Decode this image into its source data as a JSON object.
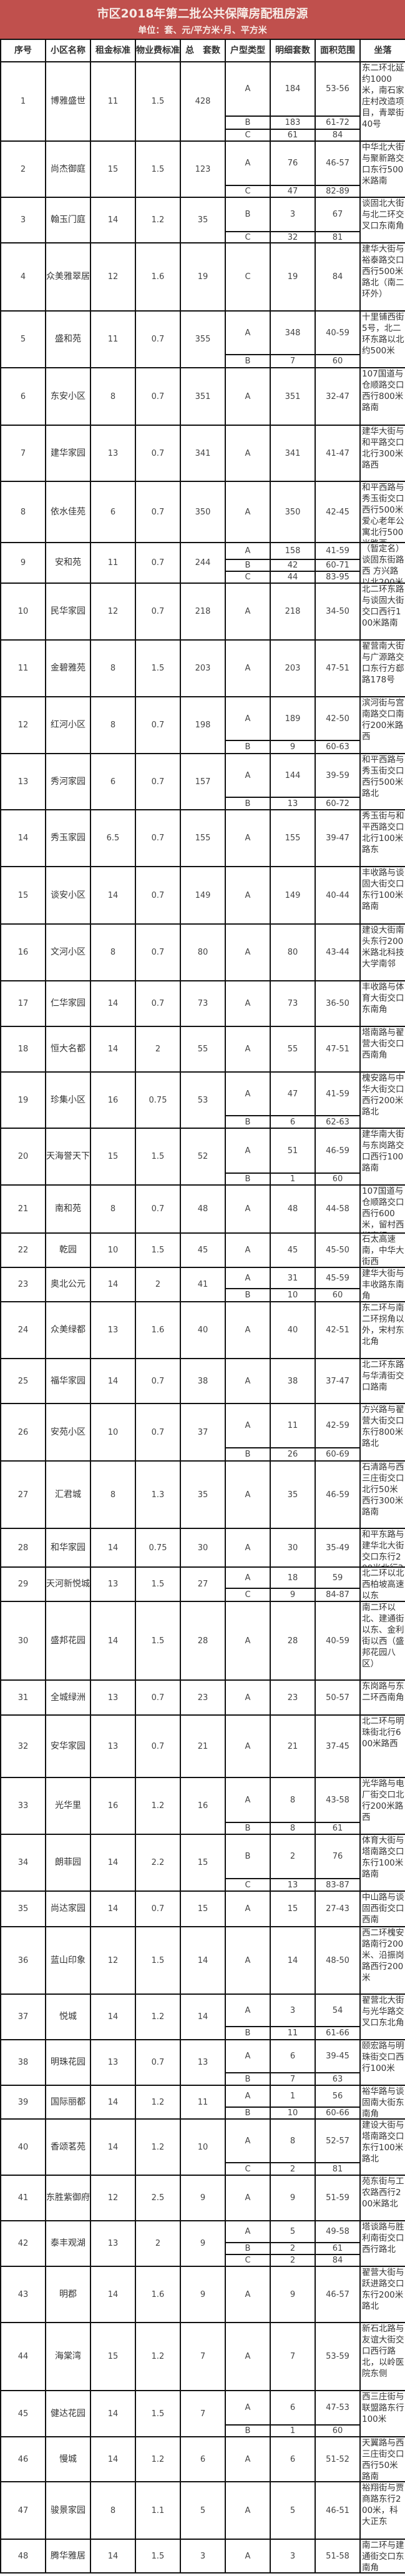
{
  "header": {
    "title": "市区2018年第二批公共保障房配租房源",
    "subtitle": "单位：套、元/平方米·月、平方米",
    "title_bg_color": "#c0504d"
  },
  "columns": [
    "序号",
    "小区名称",
    "租金标准",
    "物业费标准",
    "总　套数",
    "户型类型",
    "明细套数",
    "面积范围",
    "坐落"
  ],
  "rows": [
    {
      "no": "1",
      "name": "博雅盛世",
      "rent": "11",
      "fee": "1.5",
      "total": "428",
      "units": [
        {
          "type": "A",
          "count": "184",
          "area": "53-56"
        },
        {
          "type": "B",
          "count": "183",
          "area": "61-72"
        },
        {
          "type": "C",
          "count": "61",
          "area": "84"
        }
      ],
      "location": "东二环北延约1000米，南石家庄村改造项目，青翠街40号"
    },
    {
      "no": "2",
      "name": "尚杰御庭",
      "rent": "15",
      "fee": "1.5",
      "total": "123",
      "units": [
        {
          "type": "A",
          "count": "76",
          "area": "46-57"
        },
        {
          "type": "C",
          "count": "47",
          "area": "82-89"
        }
      ],
      "location": "中华北大街与聚新路交口东行500米路南"
    },
    {
      "no": "3",
      "name": "翰玉门庭",
      "rent": "14",
      "fee": "1.2",
      "total": "35",
      "units": [
        {
          "type": "B",
          "count": "3",
          "area": "67"
        },
        {
          "type": "C",
          "count": "32",
          "area": "81"
        }
      ],
      "location": "谈固北大街与北二环交叉口东南角"
    },
    {
      "no": "4",
      "name": "众美雅翠居",
      "rent": "12",
      "fee": "1.6",
      "total": "19",
      "units": [
        {
          "type": "C",
          "count": "19",
          "area": "84"
        }
      ],
      "location": "建华大街与裕泰路交口西行500米路北（南二环外）"
    },
    {
      "no": "5",
      "name": "盛和苑",
      "rent": "11",
      "fee": "0.7",
      "total": "355",
      "units": [
        {
          "type": "A",
          "count": "348",
          "area": "40-59"
        },
        {
          "type": "B",
          "count": "7",
          "area": "60"
        }
      ],
      "location": "十里铺西街5号，北二环东路以北约500米"
    },
    {
      "no": "6",
      "name": "东安小区",
      "rent": "8",
      "fee": "0.7",
      "total": "351",
      "units": [
        {
          "type": "A",
          "count": "351",
          "area": "32-47"
        }
      ],
      "location": "107国道与仓顺路交口西行800米路南"
    },
    {
      "no": "7",
      "name": "建华家园",
      "rent": "13",
      "fee": "0.7",
      "total": "341",
      "units": [
        {
          "type": "A",
          "count": "341",
          "area": "41-47"
        }
      ],
      "location": "建华大街与和平路交口北行300米路西"
    },
    {
      "no": "8",
      "name": "依水佳苑",
      "rent": "6",
      "fee": "0.7",
      "total": "350",
      "units": [
        {
          "type": "A",
          "count": "350",
          "area": "42-45"
        }
      ],
      "location": "和平西路与秀玉街交口西行500米爱心老年公寓北行500米路西"
    },
    {
      "no": "9",
      "name": "安和苑",
      "rent": "11",
      "fee": "0.7",
      "total": "244",
      "units": [
        {
          "type": "A",
          "count": "158",
          "area": "41-59"
        },
        {
          "type": "B",
          "count": "42",
          "area": "60-71"
        },
        {
          "type": "C",
          "count": "44",
          "area": "83-95"
        }
      ],
      "location": "（暂定名）谈固东街路西 方兴路以北200米"
    },
    {
      "no": "10",
      "name": "民华家园",
      "rent": "12",
      "fee": "0.7",
      "total": "218",
      "units": [
        {
          "type": "A",
          "count": "218",
          "area": "34-50"
        }
      ],
      "location": "北二环东路与谈固大街交口西行100米路南"
    },
    {
      "no": "11",
      "name": "金碧雅苑",
      "rent": "8",
      "fee": "1.5",
      "total": "203",
      "units": [
        {
          "type": "A",
          "count": "203",
          "area": "47-51"
        }
      ],
      "location": "翟营南大街与广源路交口东行方郄路178号"
    },
    {
      "no": "12",
      "name": "红河小区",
      "rent": "8",
      "fee": "0.7",
      "total": "198",
      "units": [
        {
          "type": "A",
          "count": "189",
          "area": "42-50"
        },
        {
          "type": "B",
          "count": "9",
          "area": "60-63"
        }
      ],
      "location": "滨河街与宫南路交口南行200米路西"
    },
    {
      "no": "13",
      "name": "秀河家园",
      "rent": "6",
      "fee": "0.7",
      "total": "157",
      "units": [
        {
          "type": "A",
          "count": "144",
          "area": "39-59"
        },
        {
          "type": "B",
          "count": "13",
          "area": "60-72"
        }
      ],
      "location": "和平西路与秀玉街交口西行500米路北"
    },
    {
      "no": "14",
      "name": "秀玉家园",
      "rent": "6.5",
      "fee": "0.7",
      "total": "155",
      "units": [
        {
          "type": "A",
          "count": "155",
          "area": "39-47"
        }
      ],
      "location": "秀玉街与和平西路交口北行100米路东"
    },
    {
      "no": "15",
      "name": "谈安小区",
      "rent": "14",
      "fee": "0.7",
      "total": "149",
      "units": [
        {
          "type": "A",
          "count": "149",
          "area": "40-44"
        }
      ],
      "location": "丰收路与谈固大街交口东行100米路南"
    },
    {
      "no": "16",
      "name": "文河小区",
      "rent": "8",
      "fee": "0.7",
      "total": "80",
      "units": [
        {
          "type": "A",
          "count": "80",
          "area": "43-44"
        }
      ],
      "location": "建设大街南头东行200米路北科技大学南邻"
    },
    {
      "no": "17",
      "name": "仁华家园",
      "rent": "14",
      "fee": "0.7",
      "total": "73",
      "units": [
        {
          "type": "A",
          "count": "73",
          "area": "36-50"
        }
      ],
      "location": "丰收路与体育大街交口东南角"
    },
    {
      "no": "18",
      "name": "恒大名都",
      "rent": "14",
      "fee": "2",
      "total": "55",
      "units": [
        {
          "type": "A",
          "count": "55",
          "area": "47-51"
        }
      ],
      "location": "塔南路与翟营大街交口西南角"
    },
    {
      "no": "19",
      "name": "珍集小区",
      "rent": "16",
      "fee": "0.75",
      "total": "53",
      "units": [
        {
          "type": "A",
          "count": "47",
          "area": "41-59"
        },
        {
          "type": "B",
          "count": "6",
          "area": "62-63"
        }
      ],
      "location": "槐安路与中华大街交口西行200米路北"
    },
    {
      "no": "20",
      "name": "天海誉天下",
      "rent": "15",
      "fee": "1.5",
      "total": "52",
      "units": [
        {
          "type": "A",
          "count": "51",
          "area": "46-59"
        },
        {
          "type": "B",
          "count": "1",
          "area": "60"
        }
      ],
      "location": "建华南大街与东岗路交口西行100路南"
    },
    {
      "no": "21",
      "name": "南和苑",
      "rent": "8",
      "fee": "0.7",
      "total": "48",
      "units": [
        {
          "type": "A",
          "count": "48",
          "area": "44-58"
        }
      ],
      "location": "107国道与仓顺路交口西行600米，留村西街南行300路东"
    },
    {
      "no": "22",
      "name": "乾园",
      "rent": "10",
      "fee": "1.5",
      "total": "45",
      "units": [
        {
          "type": "A",
          "count": "45",
          "area": "45-50"
        }
      ],
      "location": "石太高速南，中华大街西"
    },
    {
      "no": "23",
      "name": "奥北公元",
      "rent": "14",
      "fee": "2",
      "total": "41",
      "units": [
        {
          "type": "A",
          "count": "31",
          "area": "45-59"
        },
        {
          "type": "B",
          "count": "10",
          "area": "60"
        }
      ],
      "location": "建华大街与丰收路东南角"
    },
    {
      "no": "24",
      "name": "众美绿都",
      "rent": "13",
      "fee": "1.6",
      "total": "40",
      "units": [
        {
          "type": "A",
          "count": "40",
          "area": "42-51"
        }
      ],
      "location": "东二环与南二环拐角以外，宋村东北角"
    },
    {
      "no": "25",
      "name": "福华家园",
      "rent": "14",
      "fee": "0.7",
      "total": "38",
      "units": [
        {
          "type": "A",
          "count": "38",
          "area": "37-47"
        }
      ],
      "location": "北二环东路与华清街交口路南"
    },
    {
      "no": "26",
      "name": "安苑小区",
      "rent": "10",
      "fee": "0.7",
      "total": "37",
      "units": [
        {
          "type": "A",
          "count": "11",
          "area": "42-59"
        },
        {
          "type": "B",
          "count": "26",
          "area": "60-69"
        }
      ],
      "location": "方兴路与翟营大街交口东行800米路北"
    },
    {
      "no": "27",
      "name": "汇君城",
      "rent": "8",
      "fee": "1.3",
      "total": "35",
      "units": [
        {
          "type": "A",
          "count": "35",
          "area": "46-59"
        }
      ],
      "location": "石清路与西三庄街交口北行50米西行300米路南"
    },
    {
      "no": "28",
      "name": "和华家园",
      "rent": "14",
      "fee": "0.75",
      "total": "30",
      "units": [
        {
          "type": "A",
          "count": "30",
          "area": "35-49"
        }
      ],
      "location": "和平东路与建华北大街交口东行200米北行300米"
    },
    {
      "no": "29",
      "name": "天河新悦城",
      "rent": "13",
      "fee": "1.5",
      "total": "27",
      "units": [
        {
          "type": "A",
          "count": "18",
          "area": "59"
        },
        {
          "type": "C",
          "count": "9",
          "area": "84-87"
        }
      ],
      "location": "北二环以北西柏坡高速以东"
    },
    {
      "no": "30",
      "name": "盛邦花园",
      "rent": "14",
      "fee": "1.5",
      "total": "28",
      "units": [
        {
          "type": "A",
          "count": "28",
          "area": "40-59"
        }
      ],
      "location": "南二环以北、建通街以东、金利街以西（盛邦花园八区）"
    },
    {
      "no": "31",
      "name": "全城绿洲",
      "rent": "13",
      "fee": "0.7",
      "total": "23",
      "units": [
        {
          "type": "A",
          "count": "23",
          "area": "50-57"
        }
      ],
      "location": "东岗路与东二环西南角"
    },
    {
      "no": "32",
      "name": "安华家园",
      "rent": "13",
      "fee": "0.7",
      "total": "21",
      "units": [
        {
          "type": "A",
          "count": "21",
          "area": "37-45"
        }
      ],
      "location": "北二环与明珠街北行600米路西"
    },
    {
      "no": "33",
      "name": "光华里",
      "rent": "16",
      "fee": "1.2",
      "total": "16",
      "units": [
        {
          "type": "A",
          "count": "8",
          "area": "43-58"
        },
        {
          "type": "B",
          "count": "8",
          "area": "61"
        }
      ],
      "location": "光华路与电厂街交口北行200米路西"
    },
    {
      "no": "34",
      "name": "朗菲园",
      "rent": "14",
      "fee": "2.2",
      "total": "15",
      "units": [
        {
          "type": "B",
          "count": "2",
          "area": "76"
        },
        {
          "type": "C",
          "count": "13",
          "area": "83-87"
        }
      ],
      "location": "体育大街与塔南路交口东行100米路南"
    },
    {
      "no": "35",
      "name": "尚达家园",
      "rent": "14",
      "fee": "0.7",
      "total": "15",
      "units": [
        {
          "type": "A",
          "count": "15",
          "area": "27-43"
        }
      ],
      "location": "中山路与谈固西街交口西南"
    },
    {
      "no": "36",
      "name": "蓝山印象",
      "rent": "12",
      "fee": "1.5",
      "total": "14",
      "units": [
        {
          "type": "A",
          "count": "14",
          "area": "48-50"
        }
      ],
      "location": "西二环槐安路南行200米、沿振岗路西行200米"
    },
    {
      "no": "37",
      "name": "悦城",
      "rent": "14",
      "fee": "1.2",
      "total": "14",
      "units": [
        {
          "type": "A",
          "count": "3",
          "area": "54"
        },
        {
          "type": "B",
          "count": "11",
          "area": "61-66"
        }
      ],
      "location": "翟营北大街与光华路交叉口东北角"
    },
    {
      "no": "38",
      "name": "明珠花园",
      "rent": "13",
      "fee": "0.7",
      "total": "13",
      "units": [
        {
          "type": "A",
          "count": "6",
          "area": "39-45"
        },
        {
          "type": "B",
          "count": "7",
          "area": "63"
        }
      ],
      "location": "颐宏路与明珠街交口西行100米"
    },
    {
      "no": "39",
      "name": "国际丽都",
      "rent": "14",
      "fee": "1.2",
      "total": "11",
      "units": [
        {
          "type": "A",
          "count": "1",
          "area": "56"
        },
        {
          "type": "B",
          "count": "10",
          "area": "60-66"
        }
      ],
      "location": "裕华路与谈固南大街东南角"
    },
    {
      "no": "40",
      "name": "香颂茗苑",
      "rent": "14",
      "fee": "1.2",
      "total": "10",
      "units": [
        {
          "type": "A",
          "count": "8",
          "area": "52-57"
        },
        {
          "type": "C",
          "count": "2",
          "area": "81"
        }
      ],
      "location": "建设大街与塔南路交口东行100米路北"
    },
    {
      "no": "41",
      "name": "东胜紫御府",
      "rent": "12",
      "fee": "2.5",
      "total": "9",
      "units": [
        {
          "type": "A",
          "count": "9",
          "area": "51-59"
        }
      ],
      "location": "苑东街与工农路西行200米路北"
    },
    {
      "no": "42",
      "name": "泰丰观湖",
      "rent": "13",
      "fee": "2",
      "total": "9",
      "units": [
        {
          "type": "A",
          "count": "5",
          "area": "49-58"
        },
        {
          "type": "B",
          "count": "2",
          "area": "61"
        },
        {
          "type": "C",
          "count": "2",
          "area": "84"
        }
      ],
      "location": "塔谈路与胜利南街交口西行路北"
    },
    {
      "no": "43",
      "name": "明郡",
      "rent": "14",
      "fee": "1.6",
      "total": "9",
      "units": [
        {
          "type": "A",
          "count": "9",
          "area": "46-57"
        }
      ],
      "location": "翟营大街与跃进路交口东行200米路北"
    },
    {
      "no": "44",
      "name": "海棠湾",
      "rent": "15",
      "fee": "1.2",
      "total": "7",
      "units": [
        {
          "type": "A",
          "count": "7",
          "area": "53-59"
        }
      ],
      "location": "新石北路与友谊大街交口西行路北，以岭医院东侧"
    },
    {
      "no": "45",
      "name": "健达花园",
      "rent": "14",
      "fee": "1.5",
      "total": "7",
      "units": [
        {
          "type": "A",
          "count": "6",
          "area": "47-53"
        },
        {
          "type": "B",
          "count": "1",
          "area": "60"
        }
      ],
      "location": "西三庄街与联盟路东行100米"
    },
    {
      "no": "46",
      "name": "慢城",
      "rent": "14",
      "fee": "1.2",
      "total": "6",
      "units": [
        {
          "type": "A",
          "count": "6",
          "area": "51-52"
        }
      ],
      "location": "天翼路与西三庄街交口西行50米路南"
    },
    {
      "no": "47",
      "name": "骏景家园",
      "rent": "8",
      "fee": "1.1",
      "total": "5",
      "units": [
        {
          "type": "A",
          "count": "5",
          "area": "46-51"
        }
      ],
      "location": "裕翔街与贾商路东行200米，科大正东"
    },
    {
      "no": "48",
      "name": "腾华雅居",
      "rent": "14",
      "fee": "1.5",
      "total": "3",
      "units": [
        {
          "type": "A",
          "count": "3",
          "area": "51-58"
        }
      ],
      "location": "南二环与建通街交口东南角"
    }
  ]
}
